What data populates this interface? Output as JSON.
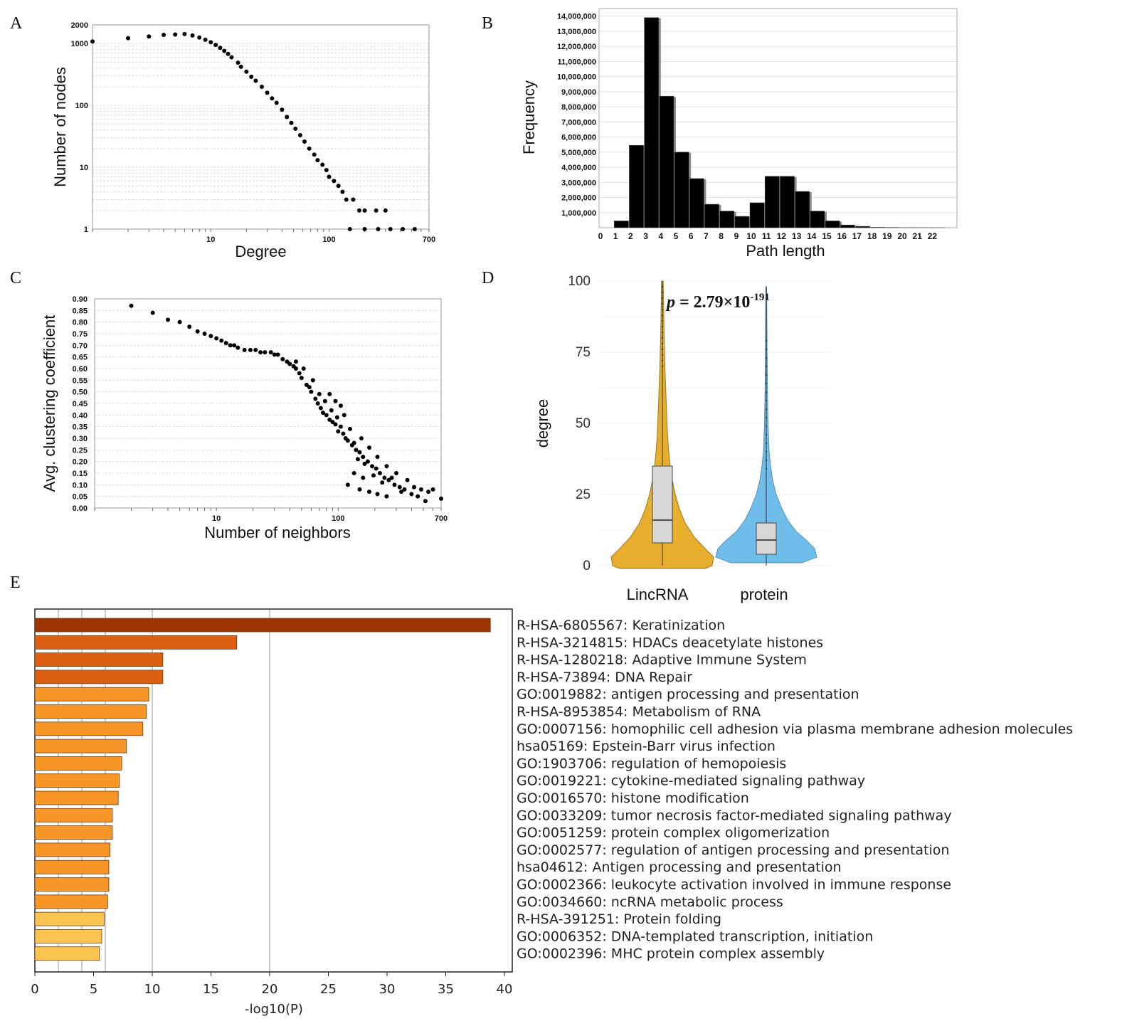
{
  "panels": [
    {
      "id": "A",
      "letter": "A"
    },
    {
      "id": "B",
      "letter": "B"
    },
    {
      "id": "C",
      "letter": "C"
    },
    {
      "id": "D",
      "letter": "D"
    },
    {
      "id": "E",
      "letter": "E"
    }
  ],
  "colors": {
    "points": "#000000",
    "bar_fill": "#000000",
    "bar_shadow": "#8c8c8c",
    "lincrna": "#E7AE2E",
    "protein": "#6EBDEB",
    "box": "#D7D7D7",
    "enrich_dark": "#9E3303",
    "enrich_mid": "#DD5F11",
    "enrich_orange": "#F89628",
    "enrich_light": "#FCC450"
  },
  "chart_data": [
    {
      "id": "A",
      "type": "scatter",
      "title": "",
      "xlabel": "Degree",
      "ylabel": "Number of nodes",
      "x_scale": "log",
      "y_scale": "log",
      "xlim": [
        1,
        700
      ],
      "ylim": [
        1,
        2000
      ],
      "x_ticks": [
        "10",
        "100",
        "700"
      ],
      "x_tick_values": [
        10,
        100,
        700
      ],
      "y_ticks": [
        "2000",
        "1000",
        "100",
        "10",
        "1"
      ],
      "y_tick_values": [
        2000,
        1000,
        100,
        10,
        1
      ],
      "grid": true,
      "points": [
        [
          1,
          1080
        ],
        [
          2,
          1220
        ],
        [
          3,
          1300
        ],
        [
          4,
          1380
        ],
        [
          5,
          1400
        ],
        [
          6,
          1420
        ],
        [
          7,
          1350
        ],
        [
          8,
          1250
        ],
        [
          9,
          1150
        ],
        [
          10,
          1050
        ],
        [
          11,
          950
        ],
        [
          12,
          850
        ],
        [
          13,
          760
        ],
        [
          14,
          680
        ],
        [
          15,
          600
        ],
        [
          17,
          490
        ],
        [
          18,
          420
        ],
        [
          20,
          350
        ],
        [
          22,
          290
        ],
        [
          24,
          250
        ],
        [
          27,
          200
        ],
        [
          30,
          160
        ],
        [
          33,
          130
        ],
        [
          36,
          110
        ],
        [
          40,
          85
        ],
        [
          44,
          65
        ],
        [
          48,
          52
        ],
        [
          52,
          42
        ],
        [
          57,
          33
        ],
        [
          62,
          26
        ],
        [
          68,
          20
        ],
        [
          75,
          16
        ],
        [
          80,
          13
        ],
        [
          88,
          11
        ],
        [
          95,
          9
        ],
        [
          100,
          7
        ],
        [
          110,
          6
        ],
        [
          120,
          5
        ],
        [
          130,
          4
        ],
        [
          140,
          3
        ],
        [
          160,
          3
        ],
        [
          180,
          2
        ],
        [
          200,
          2
        ],
        [
          250,
          2
        ],
        [
          300,
          2
        ],
        [
          150,
          1
        ],
        [
          200,
          1
        ],
        [
          260,
          1
        ],
        [
          330,
          1
        ],
        [
          420,
          1
        ],
        [
          530,
          1
        ]
      ]
    },
    {
      "id": "B",
      "type": "bar",
      "title": "",
      "xlabel": "Path length",
      "ylabel": "Frequency",
      "categories": [
        "0",
        "1",
        "2",
        "3",
        "4",
        "5",
        "6",
        "7",
        "8",
        "9",
        "10",
        "11",
        "12",
        "13",
        "14",
        "15",
        "16",
        "17",
        "18",
        "19",
        "20",
        "21",
        "22"
      ],
      "values": [
        0,
        450000,
        5450000,
        13900000,
        8700000,
        5000000,
        3250000,
        1550000,
        1100000,
        750000,
        1650000,
        3400000,
        3400000,
        2400000,
        1100000,
        450000,
        180000,
        90000,
        30000,
        20000,
        10000,
        5000,
        2000
      ],
      "ylim": [
        0,
        14500000
      ],
      "y_ticks": [
        "1,000,000",
        "2,000,000",
        "3,000,000",
        "4,000,000",
        "5,000,000",
        "6,000,000",
        "7,000,000",
        "8,000,000",
        "9,000,000",
        "10,000,000",
        "11,000,000",
        "12,000,000",
        "13,000,000",
        "14,000,000"
      ],
      "y_tick_values": [
        1000000,
        2000000,
        3000000,
        4000000,
        5000000,
        6000000,
        7000000,
        8000000,
        9000000,
        10000000,
        11000000,
        12000000,
        13000000,
        14000000
      ],
      "grid": true
    },
    {
      "id": "C",
      "type": "scatter",
      "title": "",
      "xlabel": "Number of neighbors",
      "ylabel": "Avg. clustering coefficient",
      "x_scale": "log",
      "y_scale": "linear",
      "xlim": [
        1,
        700
      ],
      "ylim": [
        0,
        0.9
      ],
      "x_ticks": [
        "10",
        "100",
        "700"
      ],
      "x_tick_values": [
        10,
        100,
        700
      ],
      "y_ticks": [
        "0.00",
        "0.05",
        "0.10",
        "0.15",
        "0.20",
        "0.25",
        "0.30",
        "0.35",
        "0.40",
        "0.45",
        "0.50",
        "0.55",
        "0.60",
        "0.65",
        "0.70",
        "0.75",
        "0.80",
        "0.85",
        "0.90"
      ],
      "y_tick_values": [
        0,
        0.05,
        0.1,
        0.15,
        0.2,
        0.25,
        0.3,
        0.35,
        0.4,
        0.45,
        0.5,
        0.55,
        0.6,
        0.65,
        0.7,
        0.75,
        0.8,
        0.85,
        0.9
      ],
      "grid": true,
      "points": [
        [
          2,
          0.87
        ],
        [
          3,
          0.84
        ],
        [
          4,
          0.81
        ],
        [
          5,
          0.8
        ],
        [
          6,
          0.78
        ],
        [
          7,
          0.76
        ],
        [
          8,
          0.75
        ],
        [
          9,
          0.74
        ],
        [
          10,
          0.73
        ],
        [
          11,
          0.72
        ],
        [
          12,
          0.71
        ],
        [
          13,
          0.7
        ],
        [
          14,
          0.7
        ],
        [
          15,
          0.69
        ],
        [
          17,
          0.68
        ],
        [
          19,
          0.68
        ],
        [
          21,
          0.68
        ],
        [
          23,
          0.67
        ],
        [
          25,
          0.67
        ],
        [
          28,
          0.67
        ],
        [
          30,
          0.66
        ],
        [
          32,
          0.66
        ],
        [
          35,
          0.64
        ],
        [
          38,
          0.63
        ],
        [
          40,
          0.62
        ],
        [
          43,
          0.61
        ],
        [
          45,
          0.6
        ],
        [
          48,
          0.58
        ],
        [
          50,
          0.56
        ],
        [
          55,
          0.53
        ],
        [
          58,
          0.52
        ],
        [
          60,
          0.5
        ],
        [
          65,
          0.47
        ],
        [
          68,
          0.45
        ],
        [
          72,
          0.43
        ],
        [
          75,
          0.41
        ],
        [
          80,
          0.4
        ],
        [
          85,
          0.38
        ],
        [
          90,
          0.37
        ],
        [
          95,
          0.36
        ],
        [
          100,
          0.33
        ],
        [
          110,
          0.32
        ],
        [
          120,
          0.29
        ],
        [
          130,
          0.27
        ],
        [
          140,
          0.25
        ],
        [
          150,
          0.24
        ],
        [
          160,
          0.22
        ],
        [
          175,
          0.2
        ],
        [
          190,
          0.18
        ],
        [
          205,
          0.17
        ],
        [
          220,
          0.15
        ],
        [
          240,
          0.13
        ],
        [
          260,
          0.12
        ],
        [
          290,
          0.1
        ],
        [
          320,
          0.09
        ],
        [
          350,
          0.08
        ],
        [
          400,
          0.06
        ],
        [
          450,
          0.05
        ],
        [
          520,
          0.03
        ],
        [
          700,
          0.04
        ],
        [
          45,
          0.63
        ],
        [
          52,
          0.6
        ],
        [
          62,
          0.55
        ],
        [
          70,
          0.49
        ],
        [
          78,
          0.46
        ],
        [
          88,
          0.42
        ],
        [
          98,
          0.39
        ],
        [
          105,
          0.35
        ],
        [
          115,
          0.3
        ],
        [
          125,
          0.34
        ],
        [
          135,
          0.28
        ],
        [
          145,
          0.21
        ],
        [
          155,
          0.3
        ],
        [
          165,
          0.19
        ],
        [
          180,
          0.26
        ],
        [
          195,
          0.14
        ],
        [
          210,
          0.22
        ],
        [
          230,
          0.11
        ],
        [
          250,
          0.18
        ],
        [
          275,
          0.13
        ],
        [
          300,
          0.15
        ],
        [
          330,
          0.07
        ],
        [
          370,
          0.12
        ],
        [
          420,
          0.09
        ],
        [
          480,
          0.08
        ],
        [
          550,
          0.07
        ],
        [
          600,
          0.08
        ],
        [
          120,
          0.1
        ],
        [
          150,
          0.08
        ],
        [
          180,
          0.07
        ],
        [
          210,
          0.06
        ],
        [
          250,
          0.05
        ],
        [
          135,
          0.15
        ],
        [
          160,
          0.13
        ],
        [
          85,
          0.49
        ],
        [
          95,
          0.46
        ],
        [
          105,
          0.44
        ],
        [
          112,
          0.4
        ]
      ]
    },
    {
      "id": "D",
      "type": "violin",
      "title": "",
      "xlabel": "",
      "ylabel": "degree",
      "categories": [
        "LincRNA",
        "protein"
      ],
      "ylim": [
        0,
        100
      ],
      "y_ticks": [
        "0",
        "25",
        "50",
        "75",
        "100"
      ],
      "y_tick_values": [
        0,
        25,
        50,
        75,
        100
      ],
      "box": [
        {
          "q1": 8,
          "median": 16,
          "q3": 35,
          "whisker_low": 0,
          "whisker_high": 100
        },
        {
          "q1": 4,
          "median": 9,
          "q3": 15,
          "whisker_low": 0,
          "whisker_high": 98
        }
      ],
      "annotation": {
        "p_symbol": "p",
        "text_main": " = 2.79×10",
        "exponent": "-191"
      },
      "grid": true
    },
    {
      "id": "E",
      "type": "bar",
      "orientation": "horizontal",
      "title": "",
      "xlabel": "-log10(P)",
      "ylabel": "",
      "xlim": [
        0,
        40
      ],
      "x_ticks": [
        "0",
        "5",
        "10",
        "15",
        "20",
        "25",
        "30",
        "35",
        "40"
      ],
      "x_tick_values": [
        0,
        5,
        10,
        15,
        20,
        25,
        30,
        35,
        40
      ],
      "grid_values": [
        2,
        4,
        6,
        10,
        20
      ],
      "categories": [
        "R-HSA-6805567: Keratinization",
        "R-HSA-3214815: HDACs deacetylate histones",
        "R-HSA-1280218: Adaptive Immune System",
        "R-HSA-73894: DNA Repair",
        "GO:0019882: antigen processing and presentation",
        "R-HSA-8953854: Metabolism of RNA",
        "GO:0007156: homophilic cell adhesion via plasma membrane adhesion molecules",
        "hsa05169: Epstein-Barr virus infection",
        "GO:1903706: regulation of hemopoiesis",
        "GO:0019221: cytokine-mediated signaling pathway",
        "GO:0016570: histone modification",
        "GO:0033209: tumor necrosis factor-mediated signaling pathway",
        "GO:0051259: protein complex oligomerization",
        "GO:0002577: regulation of antigen processing and presentation",
        "hsa04612: Antigen processing and presentation",
        "GO:0002366: leukocyte activation involved in immune response",
        "GO:0034660: ncRNA metabolic process",
        "R-HSA-391251: Protein folding",
        "GO:0006352: DNA-templated transcription, initiation",
        "GO:0002396: MHC protein complex assembly"
      ],
      "values": [
        38.8,
        17.2,
        10.9,
        10.9,
        9.7,
        9.5,
        9.2,
        7.8,
        7.4,
        7.2,
        7.1,
        6.6,
        6.6,
        6.4,
        6.3,
        6.3,
        6.2,
        5.9,
        5.7,
        5.5
      ],
      "color_levels": [
        "dark",
        "mid",
        "mid",
        "mid",
        "orange",
        "orange",
        "orange",
        "orange",
        "orange",
        "orange",
        "orange",
        "orange",
        "orange",
        "orange",
        "orange",
        "orange",
        "orange",
        "light",
        "light",
        "light"
      ]
    }
  ]
}
